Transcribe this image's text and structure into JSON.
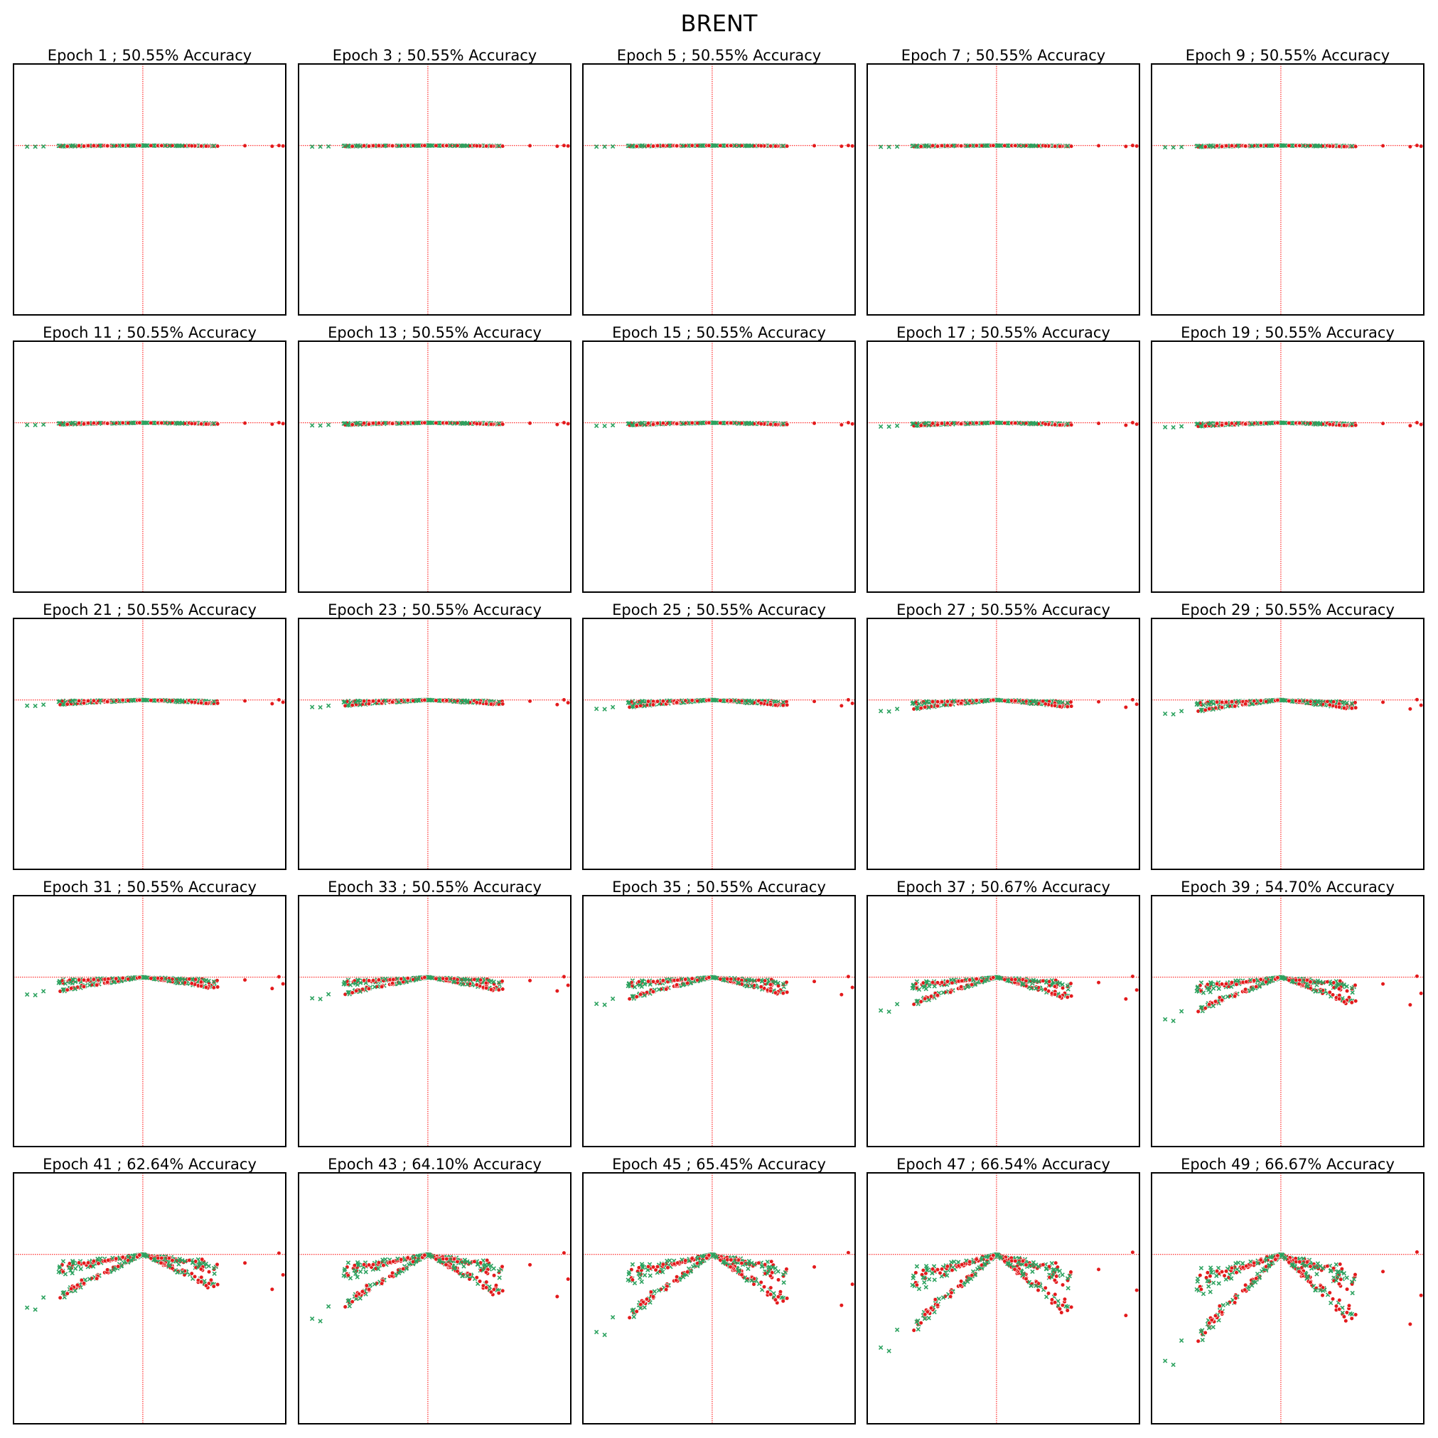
{
  "figure": {
    "title": "BRENT"
  },
  "colors": {
    "up_class": "#2ca25f",
    "down_class": "#e31a1c",
    "reference_lines": "#ff0000",
    "frame": "#000000"
  },
  "markers": {
    "up_class": "x",
    "down_class": "o"
  },
  "chart_data": {
    "type": "scatter",
    "layout": "5x5 grid of scatter panels, no axis ticks or tick labels",
    "xlim": [
      -1,
      1
    ],
    "ylim": [
      -1,
      1
    ],
    "reference_lines": {
      "vertical_x": -0.05,
      "horizontal_y": 0.35,
      "style": "dotted"
    },
    "panels": [
      {
        "epoch": 1,
        "accuracy": "50.55%",
        "title": "Epoch 1 ; 50.55% Accuracy",
        "spread": 0.005
      },
      {
        "epoch": 3,
        "accuracy": "50.55%",
        "title": "Epoch 3 ; 50.55% Accuracy",
        "spread": 0.005
      },
      {
        "epoch": 5,
        "accuracy": "50.55%",
        "title": "Epoch 5 ; 50.55% Accuracy",
        "spread": 0.005
      },
      {
        "epoch": 7,
        "accuracy": "50.55%",
        "title": "Epoch 7 ; 50.55% Accuracy",
        "spread": 0.006
      },
      {
        "epoch": 9,
        "accuracy": "50.55%",
        "title": "Epoch 9 ; 50.55% Accuracy",
        "spread": 0.008
      },
      {
        "epoch": 11,
        "accuracy": "50.55%",
        "title": "Epoch 11 ; 50.55% Accuracy",
        "spread": 0.01
      },
      {
        "epoch": 13,
        "accuracy": "50.55%",
        "title": "Epoch 13 ; 50.55% Accuracy",
        "spread": 0.012
      },
      {
        "epoch": 15,
        "accuracy": "50.55%",
        "title": "Epoch 15 ; 50.55% Accuracy",
        "spread": 0.014
      },
      {
        "epoch": 17,
        "accuracy": "50.55%",
        "title": "Epoch 17 ; 50.55% Accuracy",
        "spread": 0.017
      },
      {
        "epoch": 19,
        "accuracy": "50.55%",
        "title": "Epoch 19 ; 50.55% Accuracy",
        "spread": 0.02
      },
      {
        "epoch": 21,
        "accuracy": "50.55%",
        "title": "Epoch 21 ; 50.55% Accuracy",
        "spread": 0.026
      },
      {
        "epoch": 23,
        "accuracy": "50.55%",
        "title": "Epoch 23 ; 50.55% Accuracy",
        "spread": 0.032
      },
      {
        "epoch": 25,
        "accuracy": "50.55%",
        "title": "Epoch 25 ; 50.55% Accuracy",
        "spread": 0.04
      },
      {
        "epoch": 27,
        "accuracy": "50.55%",
        "title": "Epoch 27 ; 50.55% Accuracy",
        "spread": 0.05
      },
      {
        "epoch": 29,
        "accuracy": "50.55%",
        "title": "Epoch 29 ; 50.55% Accuracy",
        "spread": 0.062
      },
      {
        "epoch": 31,
        "accuracy": "50.55%",
        "title": "Epoch 31 ; 50.55% Accuracy",
        "spread": 0.078
      },
      {
        "epoch": 33,
        "accuracy": "50.55%",
        "title": "Epoch 33 ; 50.55% Accuracy",
        "spread": 0.095
      },
      {
        "epoch": 35,
        "accuracy": "50.55%",
        "title": "Epoch 35 ; 50.55% Accuracy",
        "spread": 0.12
      },
      {
        "epoch": 37,
        "accuracy": "50.67%",
        "title": "Epoch 37 ; 50.67% Accuracy",
        "spread": 0.15
      },
      {
        "epoch": 39,
        "accuracy": "54.70%",
        "title": "Epoch 39 ; 54.70% Accuracy",
        "spread": 0.19
      },
      {
        "epoch": 41,
        "accuracy": "62.64%",
        "title": "Epoch 41 ; 62.64% Accuracy",
        "spread": 0.24
      },
      {
        "epoch": 43,
        "accuracy": "64.10%",
        "title": "Epoch 43 ; 64.10% Accuracy",
        "spread": 0.29
      },
      {
        "epoch": 45,
        "accuracy": "65.45%",
        "title": "Epoch 45 ; 65.45% Accuracy",
        "spread": 0.35
      },
      {
        "epoch": 47,
        "accuracy": "66.54%",
        "title": "Epoch 47 ; 66.54% Accuracy",
        "spread": 0.42
      },
      {
        "epoch": 49,
        "accuracy": "66.67%",
        "title": "Epoch 49 ; 66.67% Accuracy",
        "spread": 0.48
      }
    ]
  }
}
